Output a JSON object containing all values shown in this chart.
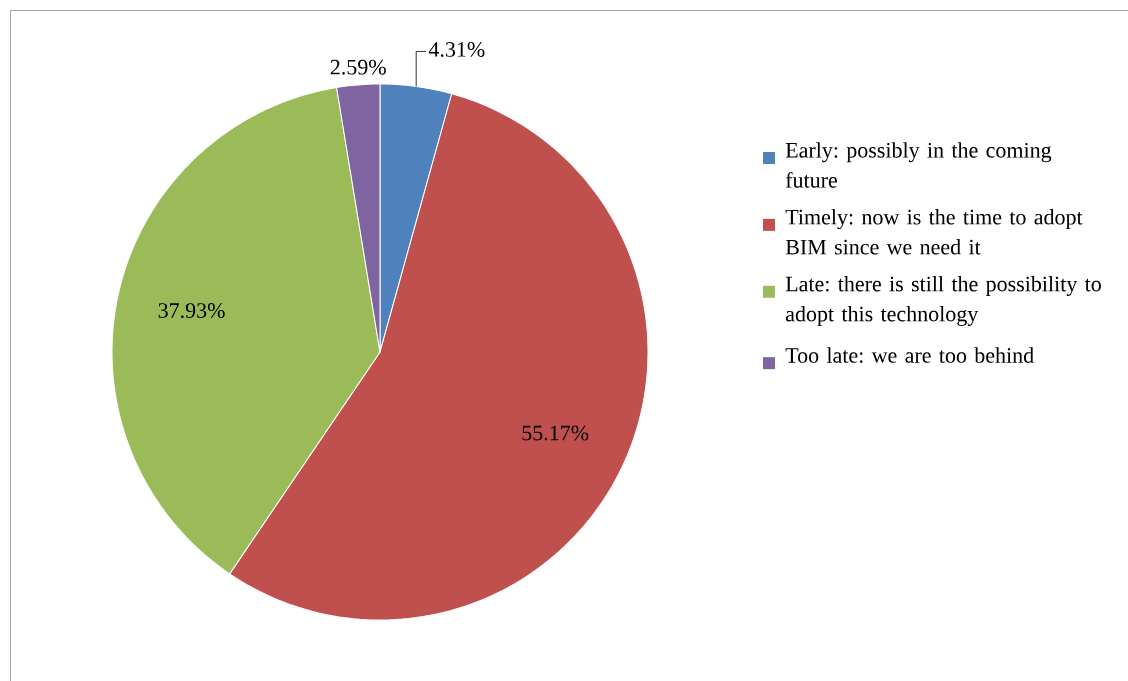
{
  "chart_data": {
    "type": "pie",
    "categories": [
      "Early: possibly in the coming future",
      "Timely: now is the time to adopt BIM since we need it",
      "Late: there is still the possibility to adopt this technology",
      "Too late: we are too behind"
    ],
    "values": [
      4.31,
      55.17,
      37.93,
      2.59
    ],
    "value_labels": [
      "4.31%",
      "55.17%",
      "37.93%",
      "2.59%"
    ],
    "colors": [
      "#4f81bd",
      "#c0504d",
      "#9bbb59",
      "#8064a2"
    ],
    "legend": "right"
  }
}
